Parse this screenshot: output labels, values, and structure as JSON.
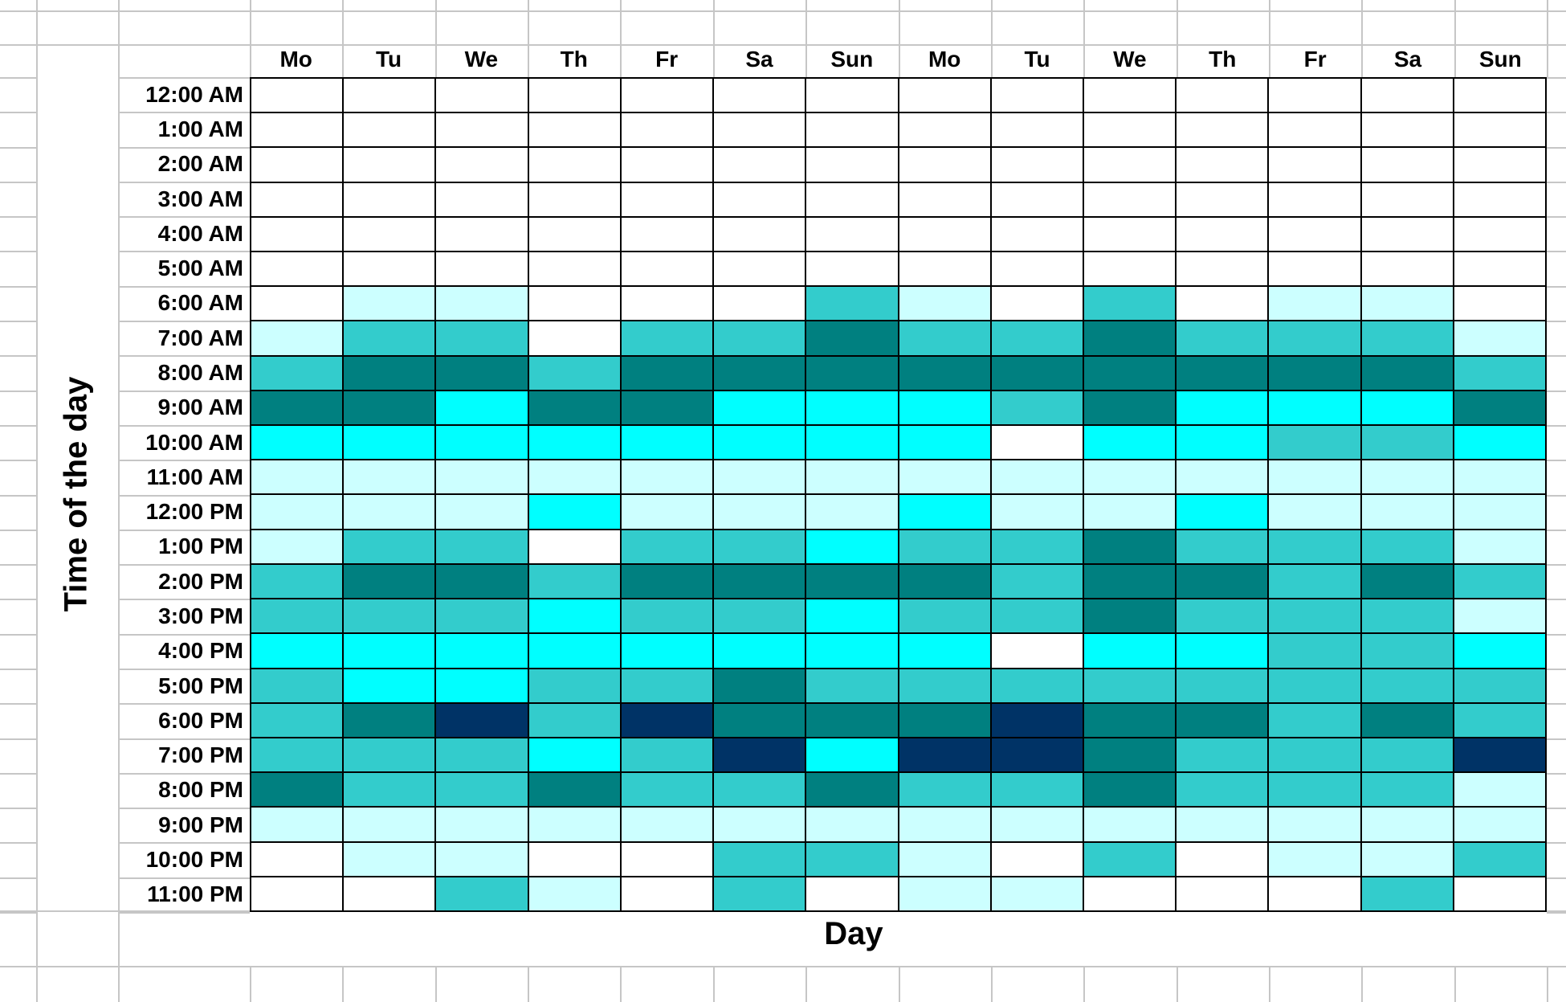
{
  "chart_data": {
    "type": "heatmap",
    "xlabel": "Day",
    "ylabel": "Time of the day",
    "columns": [
      "Mo",
      "Tu",
      "We",
      "Th",
      "Fr",
      "Sa",
      "Sun",
      "Mo",
      "Tu",
      "We",
      "Th",
      "Fr",
      "Sa",
      "Sun"
    ],
    "rows": [
      "12:00 AM",
      "1:00 AM",
      "2:00 AM",
      "3:00 AM",
      "4:00 AM",
      "5:00 AM",
      "6:00 AM",
      "7:00 AM",
      "8:00 AM",
      "9:00 AM",
      "10:00 AM",
      "11:00 AM",
      "12:00 PM",
      "1:00 PM",
      "2:00 PM",
      "3:00 PM",
      "4:00 PM",
      "5:00 PM",
      "6:00 PM",
      "7:00 PM",
      "8:00 PM",
      "9:00 PM",
      "10:00 PM",
      "11:00 PM"
    ],
    "palette": {
      "W": "#FFFFFF",
      "L": "#CCFFFF",
      "C": "#00FFFF",
      "M": "#33CCCC",
      "D": "#008080",
      "N": "#003366"
    },
    "color_scale_low_to_high": [
      "W",
      "L",
      "C",
      "M",
      "D",
      "N"
    ],
    "cells": [
      [
        "W",
        "W",
        "W",
        "W",
        "W",
        "W",
        "W",
        "W",
        "W",
        "W",
        "W",
        "W",
        "W",
        "W"
      ],
      [
        "W",
        "W",
        "W",
        "W",
        "W",
        "W",
        "W",
        "W",
        "W",
        "W",
        "W",
        "W",
        "W",
        "W"
      ],
      [
        "W",
        "W",
        "W",
        "W",
        "W",
        "W",
        "W",
        "W",
        "W",
        "W",
        "W",
        "W",
        "W",
        "W"
      ],
      [
        "W",
        "W",
        "W",
        "W",
        "W",
        "W",
        "W",
        "W",
        "W",
        "W",
        "W",
        "W",
        "W",
        "W"
      ],
      [
        "W",
        "W",
        "W",
        "W",
        "W",
        "W",
        "W",
        "W",
        "W",
        "W",
        "W",
        "W",
        "W",
        "W"
      ],
      [
        "W",
        "W",
        "W",
        "W",
        "W",
        "W",
        "W",
        "W",
        "W",
        "W",
        "W",
        "W",
        "W",
        "W"
      ],
      [
        "W",
        "L",
        "L",
        "W",
        "W",
        "W",
        "M",
        "L",
        "W",
        "M",
        "W",
        "L",
        "L",
        "W"
      ],
      [
        "L",
        "M",
        "M",
        "W",
        "M",
        "M",
        "D",
        "M",
        "M",
        "D",
        "M",
        "M",
        "M",
        "L"
      ],
      [
        "M",
        "D",
        "D",
        "M",
        "D",
        "D",
        "D",
        "D",
        "D",
        "D",
        "D",
        "D",
        "D",
        "M"
      ],
      [
        "D",
        "D",
        "C",
        "D",
        "D",
        "C",
        "C",
        "C",
        "M",
        "D",
        "C",
        "C",
        "C",
        "D"
      ],
      [
        "C",
        "C",
        "C",
        "C",
        "C",
        "C",
        "C",
        "C",
        "W",
        "C",
        "C",
        "M",
        "M",
        "C"
      ],
      [
        "L",
        "L",
        "L",
        "L",
        "L",
        "L",
        "L",
        "L",
        "L",
        "L",
        "L",
        "L",
        "L",
        "L"
      ],
      [
        "L",
        "L",
        "L",
        "C",
        "L",
        "L",
        "L",
        "C",
        "L",
        "L",
        "C",
        "L",
        "L",
        "L"
      ],
      [
        "L",
        "M",
        "M",
        "W",
        "M",
        "M",
        "C",
        "M",
        "M",
        "D",
        "M",
        "M",
        "M",
        "L"
      ],
      [
        "M",
        "D",
        "D",
        "M",
        "D",
        "D",
        "D",
        "D",
        "M",
        "D",
        "D",
        "M",
        "D",
        "M"
      ],
      [
        "M",
        "M",
        "M",
        "C",
        "M",
        "M",
        "C",
        "M",
        "M",
        "D",
        "M",
        "M",
        "M",
        "L"
      ],
      [
        "C",
        "C",
        "C",
        "C",
        "C",
        "C",
        "C",
        "C",
        "W",
        "C",
        "C",
        "M",
        "M",
        "C"
      ],
      [
        "M",
        "C",
        "C",
        "M",
        "M",
        "D",
        "M",
        "M",
        "M",
        "M",
        "M",
        "M",
        "M",
        "M"
      ],
      [
        "M",
        "D",
        "N",
        "M",
        "N",
        "D",
        "D",
        "D",
        "N",
        "D",
        "D",
        "M",
        "D",
        "M"
      ],
      [
        "M",
        "M",
        "M",
        "C",
        "M",
        "N",
        "C",
        "N",
        "N",
        "D",
        "M",
        "M",
        "M",
        "N"
      ],
      [
        "D",
        "M",
        "M",
        "D",
        "M",
        "M",
        "D",
        "M",
        "M",
        "D",
        "M",
        "M",
        "M",
        "L"
      ],
      [
        "L",
        "L",
        "L",
        "L",
        "L",
        "L",
        "L",
        "L",
        "L",
        "L",
        "L",
        "L",
        "L",
        "L"
      ],
      [
        "W",
        "L",
        "L",
        "W",
        "W",
        "M",
        "M",
        "L",
        "W",
        "M",
        "W",
        "L",
        "L",
        "M"
      ],
      [
        "W",
        "W",
        "M",
        "L",
        "W",
        "M",
        "W",
        "L",
        "L",
        "W",
        "W",
        "W",
        "M",
        "W"
      ]
    ]
  }
}
